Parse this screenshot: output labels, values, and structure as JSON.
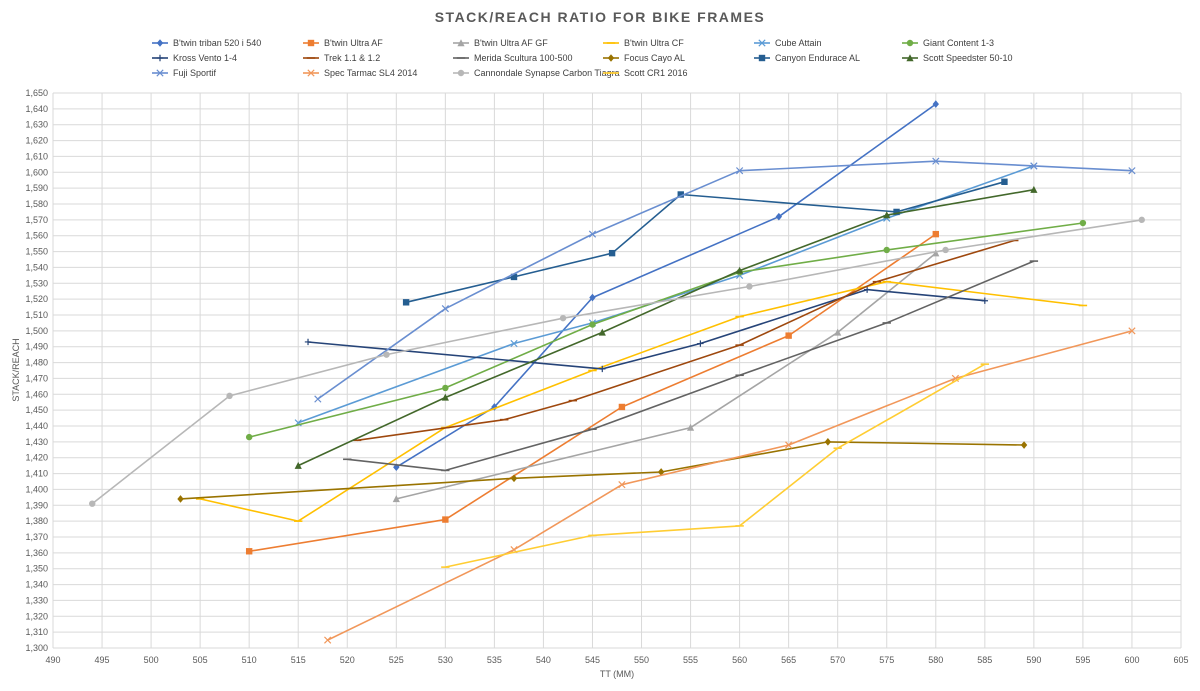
{
  "chart_data": {
    "type": "line",
    "title": "STACK/REACH RATIO FOR BIKE FRAMES",
    "xlabel": "TT (MM)",
    "ylabel": "STACK/REACH",
    "xlim": [
      490,
      605
    ],
    "ylim": [
      1300,
      1650
    ],
    "x_ticks": [
      490,
      495,
      500,
      505,
      510,
      515,
      520,
      525,
      530,
      535,
      540,
      545,
      550,
      555,
      560,
      565,
      570,
      575,
      580,
      585,
      590,
      595,
      600,
      605
    ],
    "y_ticks": [
      1300,
      1310,
      1320,
      1330,
      1340,
      1350,
      1360,
      1370,
      1380,
      1390,
      1400,
      1410,
      1420,
      1430,
      1440,
      1450,
      1460,
      1470,
      1480,
      1490,
      1500,
      1510,
      1520,
      1530,
      1540,
      1550,
      1560,
      1570,
      1580,
      1590,
      1600,
      1610,
      1620,
      1630,
      1640,
      1650
    ],
    "y_tick_labels": [
      "1,300",
      "1,310",
      "1,320",
      "1,330",
      "1,340",
      "1,350",
      "1,360",
      "1,370",
      "1,380",
      "1,390",
      "1,400",
      "1,410",
      "1,420",
      "1,430",
      "1,440",
      "1,450",
      "1,460",
      "1,470",
      "1,480",
      "1,490",
      "1,500",
      "1,510",
      "1,520",
      "1,530",
      "1,540",
      "1,550",
      "1,560",
      "1,570",
      "1,580",
      "1,590",
      "1,600",
      "1,610",
      "1,620",
      "1,630",
      "1,640",
      "1,650"
    ],
    "grid": true,
    "legend_position": "top",
    "series": [
      {
        "name": "B'twin triban 520 i 540",
        "color": "#4472C4",
        "marker": "diamond",
        "points": [
          [
            525,
            1414
          ],
          [
            535,
            1452
          ],
          [
            545,
            1521
          ],
          [
            564,
            1572
          ],
          [
            580,
            1643
          ]
        ]
      },
      {
        "name": "B'twin Ultra AF",
        "color": "#ED7D31",
        "marker": "square",
        "points": [
          [
            510,
            1361
          ],
          [
            530,
            1381
          ],
          [
            548,
            1452
          ],
          [
            565,
            1497
          ],
          [
            580,
            1561
          ]
        ]
      },
      {
        "name": "B'twin Ultra AF GF",
        "color": "#A5A5A5",
        "marker": "triangle",
        "points": [
          [
            525,
            1394
          ],
          [
            555,
            1439
          ],
          [
            570,
            1499
          ],
          [
            580,
            1549
          ]
        ]
      },
      {
        "name": "B'twin Ultra CF",
        "color": "#FFC000",
        "marker": "dash",
        "points": [
          [
            505,
            1394
          ],
          [
            515,
            1380
          ],
          [
            530,
            1439
          ],
          [
            545,
            1475
          ],
          [
            560,
            1509
          ],
          [
            575,
            1531
          ],
          [
            595,
            1516
          ]
        ]
      },
      {
        "name": "Cube Attain",
        "color": "#5B9BD5",
        "marker": "x",
        "points": [
          [
            515,
            1442
          ],
          [
            537,
            1492
          ],
          [
            545,
            1505
          ],
          [
            560,
            1535
          ],
          [
            575,
            1571
          ],
          [
            590,
            1604
          ]
        ]
      },
      {
        "name": "Giant Content 1-3",
        "color": "#70AD47",
        "marker": "circle",
        "points": [
          [
            510,
            1433
          ],
          [
            530,
            1464
          ],
          [
            545,
            1504
          ],
          [
            560,
            1537
          ],
          [
            575,
            1551
          ],
          [
            595,
            1568
          ]
        ]
      },
      {
        "name": "Kross Vento 1-4",
        "color": "#264478",
        "marker": "plus",
        "points": [
          [
            516,
            1493
          ],
          [
            546,
            1476
          ],
          [
            556,
            1492
          ],
          [
            573,
            1526
          ],
          [
            585,
            1519
          ]
        ]
      },
      {
        "name": "Trek 1.1 & 1.2",
        "color": "#9E480E",
        "marker": "dash",
        "points": [
          [
            521,
            1431
          ],
          [
            536,
            1444
          ],
          [
            543,
            1456
          ],
          [
            560,
            1491
          ],
          [
            574,
            1531
          ],
          [
            588,
            1557
          ]
        ]
      },
      {
        "name": "Merida Scultura 100-500",
        "color": "#636363",
        "marker": "dash",
        "points": [
          [
            520,
            1419
          ],
          [
            530,
            1412
          ],
          [
            545,
            1438
          ],
          [
            560,
            1472
          ],
          [
            575,
            1505
          ],
          [
            590,
            1544
          ]
        ]
      },
      {
        "name": "Focus Cayo AL",
        "color": "#997300",
        "marker": "diamond",
        "points": [
          [
            503,
            1394
          ],
          [
            537,
            1407
          ],
          [
            552,
            1411
          ],
          [
            569,
            1430
          ],
          [
            589,
            1428
          ]
        ]
      },
      {
        "name": "Canyon Endurace AL",
        "color": "#255E91",
        "marker": "square",
        "points": [
          [
            526,
            1518
          ],
          [
            537,
            1534
          ],
          [
            547,
            1549
          ],
          [
            554,
            1586
          ],
          [
            576,
            1575
          ],
          [
            587,
            1594
          ]
        ]
      },
      {
        "name": "Scott Speedster 50-10",
        "color": "#43682B",
        "marker": "triangle",
        "points": [
          [
            515,
            1415
          ],
          [
            530,
            1458
          ],
          [
            546,
            1499
          ],
          [
            560,
            1538
          ],
          [
            575,
            1573
          ],
          [
            590,
            1589
          ]
        ]
      },
      {
        "name": "Fuji Sportif",
        "color": "#698ED0",
        "marker": "x",
        "points": [
          [
            517,
            1457
          ],
          [
            530,
            1514
          ],
          [
            545,
            1561
          ],
          [
            560,
            1601
          ],
          [
            580,
            1607
          ],
          [
            590,
            1604
          ],
          [
            600,
            1601
          ]
        ]
      },
      {
        "name": "Spec Tarmac SL4 2014",
        "color": "#F1975A",
        "marker": "x",
        "points": [
          [
            518,
            1305
          ],
          [
            537,
            1362
          ],
          [
            548,
            1403
          ],
          [
            565,
            1428
          ],
          [
            582,
            1470
          ],
          [
            600,
            1500
          ]
        ]
      },
      {
        "name": "Cannondale Synapse Carbon Tiagra",
        "color": "#B7B7B7",
        "marker": "circle",
        "points": [
          [
            494,
            1391
          ],
          [
            508,
            1459
          ],
          [
            524,
            1485
          ],
          [
            542,
            1508
          ],
          [
            561,
            1528
          ],
          [
            581,
            1551
          ],
          [
            601,
            1570
          ]
        ]
      },
      {
        "name": "Scott CR1 2016",
        "color": "#FFCD33",
        "marker": "dash",
        "points": [
          [
            530,
            1351
          ],
          [
            545,
            1371
          ],
          [
            560,
            1377
          ],
          [
            570,
            1426
          ],
          [
            585,
            1479
          ]
        ]
      }
    ]
  }
}
